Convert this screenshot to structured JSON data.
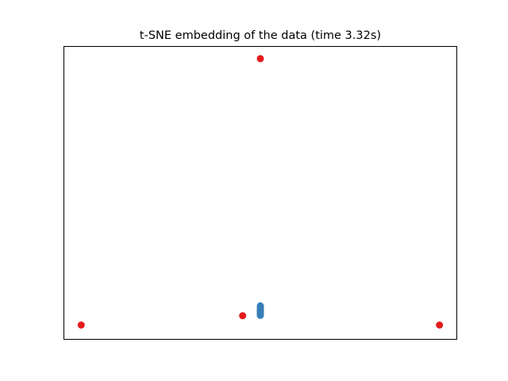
{
  "chart_data": {
    "type": "scatter",
    "title": "t-SNE embedding of the data (time 3.32s)",
    "xlabel": "",
    "ylabel": "",
    "axes_visible": false,
    "grid": false,
    "legend": "none",
    "xlim": [
      0,
      1
    ],
    "ylim": [
      0,
      1
    ],
    "colors": {
      "red_points": "#e41a1c",
      "blue_points": "#377eb8"
    },
    "series": [
      {
        "color_key": "red_points",
        "points": [
          {
            "x": 0.5,
            "y": 0.957
          },
          {
            "x": 0.045,
            "y": 0.05
          },
          {
            "x": 0.455,
            "y": 0.082
          },
          {
            "x": 0.955,
            "y": 0.05
          }
        ]
      },
      {
        "color_key": "blue_points",
        "points": [
          {
            "x": 0.5,
            "y": 0.083
          },
          {
            "x": 0.5,
            "y": 0.087
          },
          {
            "x": 0.5,
            "y": 0.091
          },
          {
            "x": 0.5,
            "y": 0.095
          },
          {
            "x": 0.5,
            "y": 0.099
          },
          {
            "x": 0.5,
            "y": 0.103
          },
          {
            "x": 0.5,
            "y": 0.107
          },
          {
            "x": 0.5,
            "y": 0.111
          },
          {
            "x": 0.5,
            "y": 0.115
          }
        ]
      }
    ]
  }
}
